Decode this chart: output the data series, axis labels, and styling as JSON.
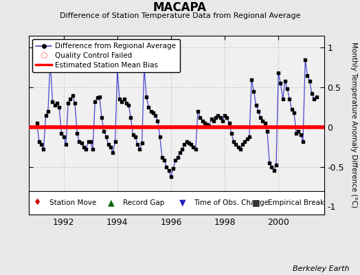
{
  "title": "MACAPA",
  "subtitle": "Difference of Station Temperature Data from Regional Average",
  "ylabel": "Monthly Temperature Anomaly Difference (°C)",
  "xlabel_ticks": [
    1992,
    1994,
    1996,
    1998,
    2000
  ],
  "ylim": [
    -1.1,
    1.15
  ],
  "xlim": [
    1990.7,
    2001.7
  ],
  "bias_value": 0.0,
  "background_color": "#e8e8e8",
  "plot_bg_color": "#f0f0f0",
  "line_color": "#4444cc",
  "dot_color": "#000000",
  "bias_color": "#ff0000",
  "watermark": "Berkeley Earth",
  "months": [
    1991.0,
    1991.083,
    1991.167,
    1991.25,
    1991.333,
    1991.417,
    1991.5,
    1991.583,
    1991.667,
    1991.75,
    1991.833,
    1991.917,
    1992.0,
    1992.083,
    1992.167,
    1992.25,
    1992.333,
    1992.417,
    1992.5,
    1992.583,
    1992.667,
    1992.75,
    1992.833,
    1992.917,
    1993.0,
    1993.083,
    1993.167,
    1993.25,
    1993.333,
    1993.417,
    1993.5,
    1993.583,
    1993.667,
    1993.75,
    1993.833,
    1993.917,
    1994.0,
    1994.083,
    1994.167,
    1994.25,
    1994.333,
    1994.417,
    1994.5,
    1994.583,
    1994.667,
    1994.75,
    1994.833,
    1994.917,
    1995.0,
    1995.083,
    1995.167,
    1995.25,
    1995.333,
    1995.417,
    1995.5,
    1995.583,
    1995.667,
    1995.75,
    1995.833,
    1995.917,
    1996.0,
    1996.083,
    1996.167,
    1996.25,
    1996.333,
    1996.417,
    1996.5,
    1996.583,
    1996.667,
    1996.75,
    1996.833,
    1996.917,
    1997.0,
    1997.083,
    1997.167,
    1997.25,
    1997.333,
    1997.417,
    1997.5,
    1997.583,
    1997.667,
    1997.75,
    1997.833,
    1997.917,
    1998.0,
    1998.083,
    1998.167,
    1998.25,
    1998.333,
    1998.417,
    1998.5,
    1998.583,
    1998.667,
    1998.75,
    1998.833,
    1998.917,
    1999.0,
    1999.083,
    1999.167,
    1999.25,
    1999.333,
    1999.417,
    1999.5,
    1999.583,
    1999.667,
    1999.75,
    1999.833,
    1999.917,
    2000.0,
    2000.083,
    2000.167,
    2000.25,
    2000.333,
    2000.417,
    2000.5,
    2000.583,
    2000.667,
    2000.75,
    2000.833,
    2000.917,
    2001.0,
    2001.083,
    2001.167,
    2001.25,
    2001.333,
    2001.417
  ],
  "values": [
    0.05,
    -0.18,
    -0.22,
    -0.28,
    0.15,
    0.2,
    0.85,
    0.32,
    0.28,
    0.3,
    0.25,
    -0.08,
    -0.12,
    -0.22,
    0.3,
    0.35,
    0.4,
    0.3,
    -0.08,
    -0.18,
    -0.2,
    -0.25,
    -0.28,
    -0.18,
    -0.18,
    -0.28,
    0.32,
    0.37,
    0.38,
    0.12,
    -0.05,
    -0.12,
    -0.22,
    -0.25,
    -0.32,
    -0.18,
    0.72,
    0.35,
    0.32,
    0.35,
    0.3,
    0.28,
    0.12,
    -0.1,
    -0.12,
    -0.22,
    -0.28,
    -0.2,
    0.75,
    0.38,
    0.25,
    0.2,
    0.18,
    0.15,
    0.08,
    -0.12,
    -0.38,
    -0.42,
    -0.5,
    -0.55,
    -0.62,
    -0.52,
    -0.42,
    -0.38,
    -0.32,
    -0.28,
    -0.22,
    -0.18,
    -0.2,
    -0.22,
    -0.25,
    -0.28,
    0.2,
    0.12,
    0.08,
    0.05,
    0.03,
    0.02,
    0.1,
    0.08,
    0.12,
    0.15,
    0.12,
    0.08,
    0.15,
    0.12,
    0.05,
    -0.08,
    -0.18,
    -0.22,
    -0.25,
    -0.28,
    -0.22,
    -0.18,
    -0.15,
    -0.12,
    0.6,
    0.45,
    0.28,
    0.2,
    0.12,
    0.08,
    0.05,
    -0.05,
    -0.45,
    -0.5,
    -0.55,
    -0.48,
    0.68,
    0.55,
    0.35,
    0.58,
    0.48,
    0.35,
    0.22,
    0.18,
    -0.08,
    -0.05,
    -0.1,
    -0.18,
    0.85,
    0.65,
    0.58,
    0.42,
    0.35,
    0.38
  ]
}
